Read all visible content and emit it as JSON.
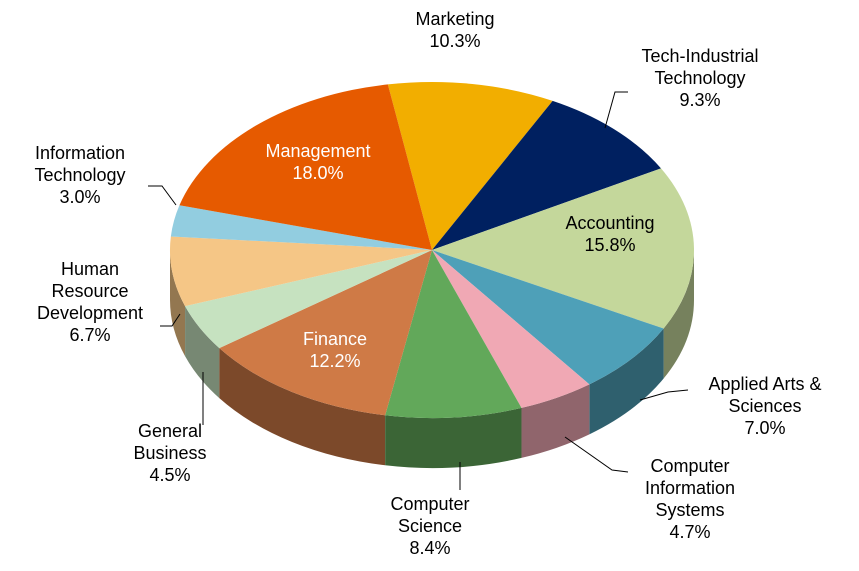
{
  "chart_data": {
    "type": "pie3d",
    "categories": [
      "Marketing",
      "Tech-Industrial Technology",
      "Accounting",
      "Applied Arts & Sciences",
      "Computer Information Systems",
      "Computer Science",
      "Finance",
      "General Business",
      "Human Resource Development",
      "Information Technology",
      "Management"
    ],
    "values": [
      10.3,
      9.3,
      15.8,
      7.0,
      4.7,
      8.4,
      12.2,
      4.5,
      6.7,
      3.0,
      18.0
    ],
    "value_labels": [
      "10.3%",
      "9.3%",
      "15.8%",
      "7.0%",
      "4.7%",
      "8.4%",
      "12.2%",
      "4.5%",
      "6.7%",
      "3.0%",
      "18.0%"
    ],
    "colors": [
      "#f2ae00",
      "#002060",
      "#c4d79b",
      "#4ea0b8",
      "#f0a8b4",
      "#62a85a",
      "#cf7a46",
      "#c6e2c0",
      "#f5c686",
      "#92cde0",
      "#e65a00"
    ]
  }
}
